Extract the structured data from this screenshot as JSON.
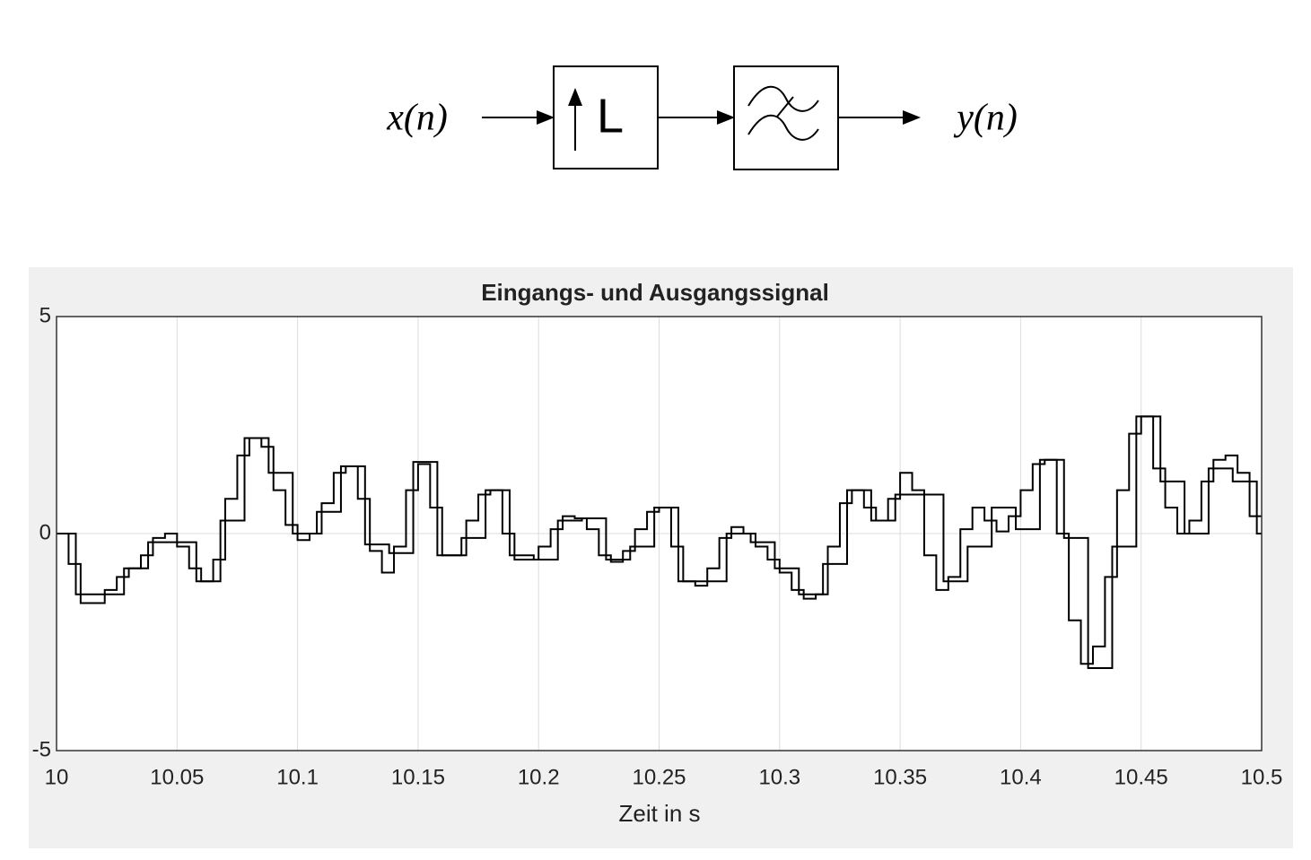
{
  "diagram": {
    "input": "x(n)",
    "upsampler": "L",
    "output": "y(n)"
  },
  "chart_data": {
    "type": "step",
    "title": "Eingangs- und Ausgangssignal",
    "xlabel": "Zeit in s",
    "xlim": [
      10,
      10.5
    ],
    "ylim": [
      -5,
      5
    ],
    "xticks": [
      10,
      10.05,
      10.1,
      10.15,
      10.2,
      10.25,
      10.3,
      10.35,
      10.4,
      10.45,
      10.5
    ],
    "yticks": [
      -5,
      0,
      5
    ],
    "grid": true,
    "series": [
      {
        "color": "#000000",
        "x": [
          10,
          10.008,
          10.018,
          10.028,
          10.038,
          10.048,
          10.058,
          10.068,
          10.078,
          10.088,
          10.098,
          10.108,
          10.118,
          10.128,
          10.138,
          10.148,
          10.158,
          10.168,
          10.178,
          10.188,
          10.198,
          10.208,
          10.218,
          10.228,
          10.238,
          10.248,
          10.258,
          10.268,
          10.278,
          10.288,
          10.298,
          10.308,
          10.318,
          10.328,
          10.338,
          10.348,
          10.358,
          10.368,
          10.378,
          10.388,
          10.398,
          10.408,
          10.418,
          10.428,
          10.438,
          10.448,
          10.458,
          10.468,
          10.478,
          10.488,
          10.498
        ],
        "values": [
          0,
          -1.4,
          -1.4,
          -0.8,
          -0.2,
          -0.2,
          -1.1,
          0.3,
          2.2,
          1.4,
          0,
          0.5,
          1.55,
          -0.25,
          -0.45,
          1.65,
          -0.5,
          -0.1,
          1.0,
          -0.5,
          -0.6,
          0.3,
          0.35,
          -0.6,
          -0.3,
          0.6,
          -1.1,
          -1.1,
          0,
          -0.2,
          -0.8,
          -1.4,
          -0.7,
          1.0,
          0.3,
          0.9,
          0.9,
          -1.1,
          -0.3,
          0.6,
          0.1,
          1.7,
          -0.1,
          -3.1,
          -0.3,
          2.7,
          1.2,
          0,
          1.5,
          1.2,
          0
        ]
      },
      {
        "color": "#000000",
        "x": [
          10,
          10.005,
          10.01,
          10.015,
          10.02,
          10.025,
          10.03,
          10.035,
          10.04,
          10.045,
          10.05,
          10.055,
          10.06,
          10.065,
          10.07,
          10.075,
          10.08,
          10.085,
          10.09,
          10.095,
          10.1,
          10.105,
          10.11,
          10.115,
          10.12,
          10.125,
          10.13,
          10.135,
          10.14,
          10.145,
          10.15,
          10.155,
          10.16,
          10.165,
          10.17,
          10.175,
          10.18,
          10.185,
          10.19,
          10.195,
          10.2,
          10.205,
          10.21,
          10.215,
          10.22,
          10.225,
          10.23,
          10.235,
          10.24,
          10.245,
          10.25,
          10.255,
          10.26,
          10.265,
          10.27,
          10.275,
          10.28,
          10.285,
          10.29,
          10.295,
          10.3,
          10.305,
          10.31,
          10.315,
          10.32,
          10.325,
          10.33,
          10.335,
          10.34,
          10.345,
          10.35,
          10.355,
          10.36,
          10.365,
          10.37,
          10.375,
          10.38,
          10.385,
          10.39,
          10.395,
          10.4,
          10.405,
          10.41,
          10.415,
          10.42,
          10.425,
          10.43,
          10.435,
          10.44,
          10.445,
          10.45,
          10.455,
          10.46,
          10.465,
          10.47,
          10.475,
          10.48,
          10.485,
          10.49,
          10.495
        ],
        "values": [
          0,
          -0.7,
          -1.6,
          -1.6,
          -1.3,
          -1.0,
          -0.8,
          -0.5,
          -0.1,
          0,
          -0.3,
          -0.8,
          -1.1,
          -0.6,
          0.8,
          1.8,
          2.2,
          2.0,
          1.0,
          0.2,
          -0.15,
          0,
          0.7,
          1.4,
          1.55,
          0.8,
          -0.4,
          -0.9,
          -0.3,
          1.0,
          1.6,
          0.6,
          -0.5,
          -0.5,
          0.3,
          0.9,
          1.0,
          0,
          -0.6,
          -0.6,
          -0.3,
          0.1,
          0.4,
          0.35,
          0.1,
          -0.5,
          -0.65,
          -0.4,
          0.1,
          0.5,
          0.6,
          -0.3,
          -1.1,
          -1.2,
          -0.8,
          -0.1,
          0.15,
          0,
          -0.3,
          -0.6,
          -0.9,
          -1.3,
          -1.5,
          -1.4,
          -0.3,
          0.7,
          1.0,
          0.6,
          0.3,
          0.8,
          1.4,
          1.0,
          -0.5,
          -1.3,
          -1.0,
          0.1,
          0.6,
          0.3,
          0.05,
          0.4,
          1.0,
          1.6,
          1.7,
          0,
          -2.0,
          -3.0,
          -2.6,
          -1.0,
          1.0,
          2.3,
          2.7,
          1.5,
          0.6,
          0,
          0.3,
          1.2,
          1.7,
          1.8,
          1.4,
          0.4
        ]
      }
    ]
  }
}
